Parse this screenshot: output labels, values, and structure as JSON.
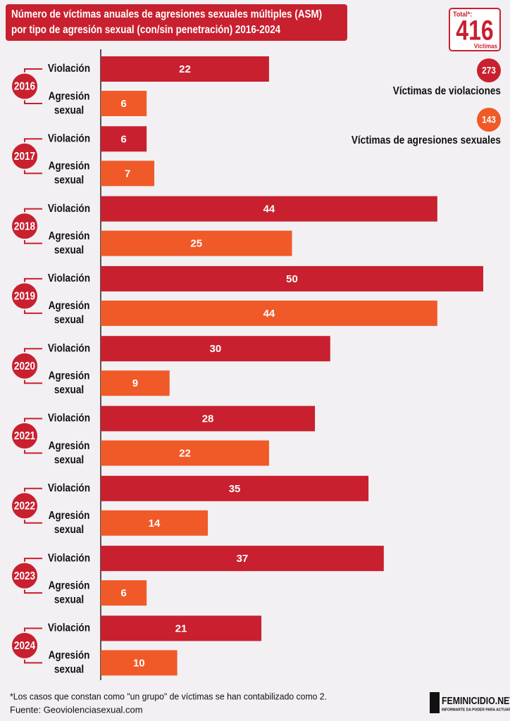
{
  "chart_data": {
    "type": "bar",
    "orientation": "horizontal",
    "title": [
      "Número de víctimas anuales de agresiones sexuales múltiples (ASM)",
      "por tipo de agresión sexual (con/sin penetración) 2016-2024"
    ],
    "categories": [
      "2016",
      "2017",
      "2018",
      "2019",
      "2020",
      "2021",
      "2022",
      "2023",
      "2024"
    ],
    "series": [
      {
        "name": "Violación",
        "color": "#c8202f",
        "values": [
          22,
          6,
          44,
          50,
          30,
          28,
          35,
          37,
          21
        ]
      },
      {
        "name": "Agresión sexual",
        "color": "#f05a28",
        "values": [
          6,
          7,
          25,
          44,
          9,
          22,
          14,
          6,
          10
        ]
      }
    ],
    "xlim": [
      0,
      50
    ],
    "total": {
      "label": "Total*:",
      "value": 416,
      "unit": "Víctimas"
    },
    "summary": [
      {
        "value": 273,
        "label": "Víctimas de violaciones",
        "color": "#c8202f"
      },
      {
        "value": 143,
        "label": "Víctimas de agresiones sexuales",
        "color": "#f05a28"
      }
    ],
    "footnote": "*Los casos que constan como \"un grupo\" de víctimas se han contabilizado como 2.",
    "source": "Fuente: Geoviolenciasexual.com"
  },
  "logo": {
    "name": "FEMINICIDIO.NET",
    "tagline": "INFORMARTE DA PODER PARA ACTUAR"
  }
}
